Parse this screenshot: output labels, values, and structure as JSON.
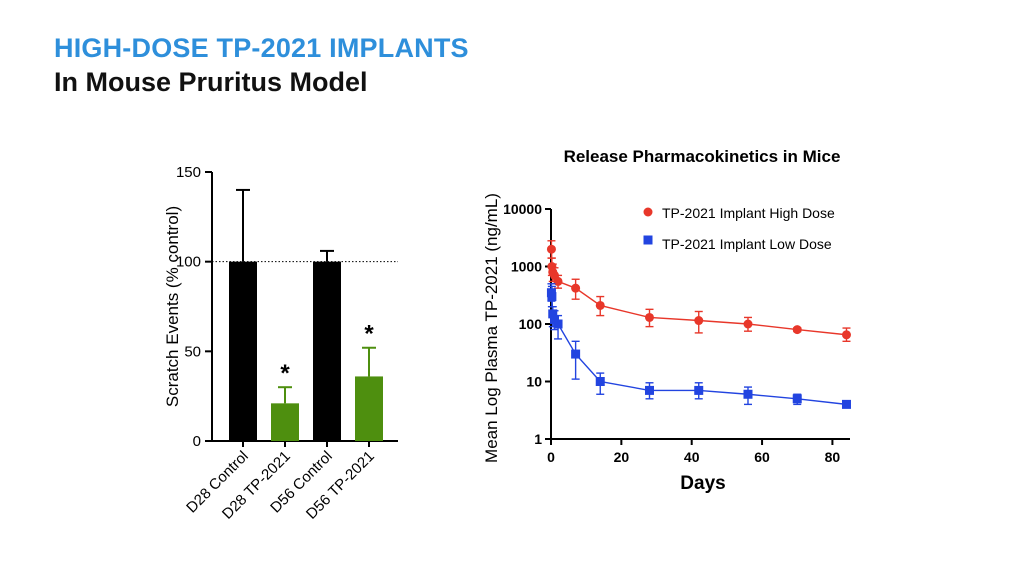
{
  "slide": {
    "title": "HIGH-DOSE TP-2021 IMPLANTS",
    "subtitle": "In Mouse Pruritus Model"
  },
  "colors": {
    "title_blue": "#2e8fdb",
    "bar_black": "#000000",
    "bar_green": "#4e8f0f",
    "high_dose_red": "#e8372a",
    "low_dose_blue": "#2244e0"
  },
  "chart_data": [
    {
      "type": "bar",
      "title": "",
      "xlabel": "",
      "ylabel": "Scratch Events (% control)",
      "ylim": [
        0,
        150
      ],
      "yticks": [
        0,
        50,
        100,
        150
      ],
      "reference_line": 100,
      "categories": [
        "D28 Control",
        "D28 TP-2021",
        "D56 Control",
        "D56 TP-2021"
      ],
      "values": [
        100,
        21,
        100,
        36
      ],
      "error_upper": [
        140,
        30,
        106,
        52
      ],
      "significance": [
        "",
        "*",
        "",
        "*"
      ],
      "bar_colors": [
        "#000000",
        "#4e8f0f",
        "#000000",
        "#4e8f0f"
      ]
    },
    {
      "type": "line",
      "title": "Release Pharmacokinetics in Mice",
      "xlabel": "Days",
      "ylabel": "Mean Log Plasma TP-2021 (ng/mL)",
      "xlim": [
        0,
        85
      ],
      "ylim": [
        1,
        10000
      ],
      "yscale": "log",
      "xticks": [
        0,
        20,
        40,
        60,
        80
      ],
      "yticks": [
        1,
        10,
        100,
        1000,
        10000
      ],
      "ytick_labels": [
        "1",
        "10",
        "100",
        "1000",
        "10000"
      ],
      "legend_position": "top-right",
      "series": [
        {
          "name": "TP-2021 Implant High Dose",
          "marker": "circle",
          "color": "#e8372a",
          "x": [
            0.125,
            0.25,
            0.5,
            1,
            2,
            7,
            14,
            28,
            42,
            56,
            70,
            84
          ],
          "y": [
            2000,
            1000,
            800,
            700,
            550,
            420,
            210,
            130,
            115,
            100,
            80,
            65
          ],
          "err_low": [
            1400,
            700,
            550,
            500,
            420,
            270,
            140,
            90,
            70,
            75,
            74,
            50
          ],
          "err_high": [
            2800,
            1400,
            1100,
            950,
            700,
            600,
            300,
            180,
            165,
            130,
            86,
            85
          ]
        },
        {
          "name": "TP-2021 Implant Low Dose",
          "marker": "square",
          "color": "#2244e0",
          "x": [
            0.125,
            0.25,
            0.5,
            1,
            2,
            7,
            14,
            28,
            42,
            56,
            70,
            84
          ],
          "y": [
            350,
            300,
            150,
            120,
            100,
            30,
            10,
            7,
            7,
            6,
            5,
            4
          ],
          "err_low": [
            250,
            200,
            90,
            80,
            55,
            11,
            6,
            5,
            5,
            4,
            4,
            3.6
          ],
          "err_high": [
            500,
            450,
            200,
            170,
            140,
            50,
            14,
            9.5,
            9.5,
            8,
            6,
            4.4
          ]
        }
      ]
    }
  ]
}
